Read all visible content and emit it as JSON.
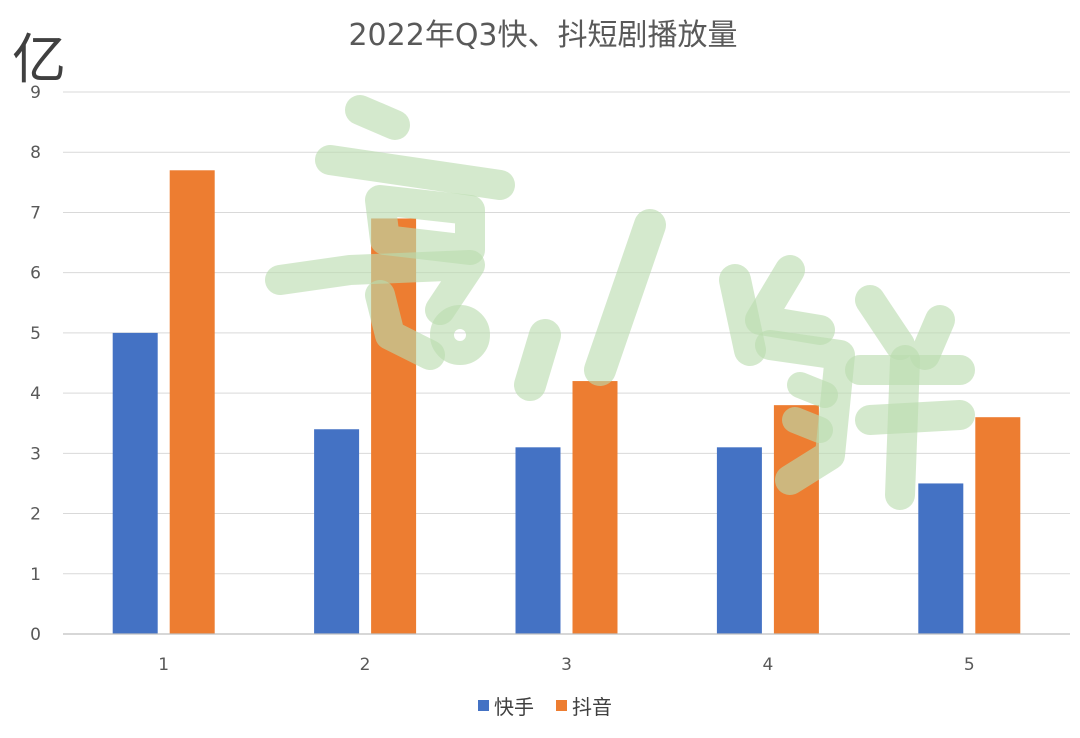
{
  "chart_data": {
    "type": "bar",
    "title": "2022年Q3快、抖短剧播放量",
    "unit_label": "亿",
    "categories": [
      "1",
      "2",
      "3",
      "4",
      "5"
    ],
    "series": [
      {
        "name": "快手",
        "color": "#4472c4",
        "values": [
          5.0,
          3.4,
          3.1,
          3.1,
          2.5
        ]
      },
      {
        "name": "抖音",
        "color": "#ed7d31",
        "values": [
          7.7,
          6.9,
          4.2,
          3.8,
          3.6
        ]
      }
    ],
    "ylim": [
      0,
      9
    ],
    "yticks": [
      "0",
      "1",
      "2",
      "3",
      "4",
      "5",
      "6",
      "7",
      "8",
      "9"
    ],
    "grid": true,
    "legend_position": "bottom"
  },
  "watermark": {
    "text": "烹小鲜",
    "color": "#b9dcae"
  }
}
